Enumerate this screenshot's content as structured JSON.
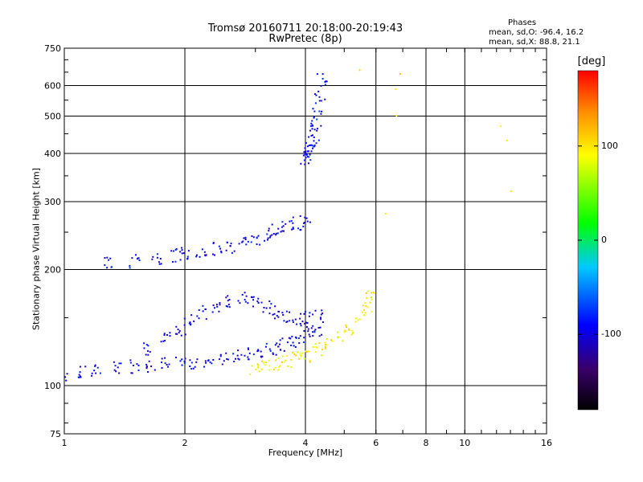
{
  "header": {
    "title_line1": "Tromsø 20160711 20:18:00-20:19:43",
    "title_line2": "RwPretec (8p)"
  },
  "phases_box": {
    "heading": "Phases",
    "line_O": "mean, sd,O: -96.4, 16.2",
    "line_X": "mean, sd,X: 88.8, 21.1"
  },
  "colorbar": {
    "title": "[deg]",
    "range": [
      -180,
      180
    ],
    "tick_labels": [
      "100",
      "0",
      "-100"
    ],
    "tick_values": [
      100,
      0,
      -100
    ],
    "colors": [
      "#000000",
      "#3a006a",
      "#0000ff",
      "#00c8ff",
      "#00ff00",
      "#ffff00",
      "#ff8c00",
      "#ff0000"
    ]
  },
  "chart_data": {
    "type": "scatter",
    "title": "Tromsø 20160711 20:18:00-20:19:43",
    "subtitle": "RwPretec (8p)",
    "xlabel": "Frequency [MHz]",
    "ylabel": "Stationary phase Virtual Height [km]",
    "x_scale": "log",
    "y_scale": "log",
    "xlim": [
      1,
      16
    ],
    "ylim": [
      75,
      750
    ],
    "x_ticks": [
      1,
      2,
      4,
      6,
      8,
      10,
      16
    ],
    "x_tick_labels": [
      "1",
      "2",
      "4",
      "6",
      "8",
      "10",
      "16"
    ],
    "y_ticks": [
      75,
      100,
      200,
      300,
      400,
      500,
      600,
      750
    ],
    "y_tick_labels": [
      "75",
      "100",
      "200",
      "300",
      "400",
      "500",
      "600",
      "750"
    ],
    "grid": true,
    "color_by": "phase [deg]",
    "point_groups": [
      {
        "description": "O-mode F1/E trace low",
        "x": [
          1.0,
          1.1,
          1.2,
          1.35,
          1.5,
          1.65,
          1.8,
          1.95,
          2.1,
          2.3,
          2.5,
          2.7,
          2.9,
          3.1,
          3.3,
          3.5,
          3.7,
          3.9,
          4.1,
          4.3
        ],
        "y": [
          106,
          108,
          110,
          111,
          112,
          113,
          114,
          114,
          115,
          116,
          118,
          119,
          121,
          123,
          125,
          128,
          130,
          134,
          137,
          140
        ],
        "phase": -95
      },
      {
        "description": "O-mode spread upper",
        "x": [
          1.6,
          1.8,
          1.95,
          2.05,
          2.2,
          2.4,
          2.6,
          2.8,
          3.0,
          3.2,
          3.4,
          3.6,
          3.8,
          4.0,
          4.3
        ],
        "y": [
          125,
          132,
          140,
          148,
          155,
          160,
          165,
          168,
          165,
          160,
          155,
          150,
          148,
          150,
          152
        ],
        "phase": -100
      },
      {
        "description": "O-mode F2 trace",
        "x": [
          1.3,
          1.5,
          1.7,
          1.9,
          2.0,
          2.2,
          2.4,
          2.6,
          2.8,
          3.0,
          3.2,
          3.4,
          3.6,
          3.8,
          4.0
        ],
        "y": [
          208,
          210,
          214,
          218,
          220,
          222,
          226,
          230,
          234,
          240,
          246,
          252,
          258,
          264,
          268
        ],
        "phase": -95
      },
      {
        "description": "O-mode F2 cusp",
        "x": [
          4.0,
          4.05,
          4.1,
          4.15,
          4.2,
          4.25,
          4.3,
          4.35,
          4.4
        ],
        "y": [
          390,
          400,
          410,
          425,
          445,
          470,
          510,
          560,
          620
        ],
        "phase": -90
      },
      {
        "description": "X-mode trace",
        "x": [
          3.0,
          3.2,
          3.4,
          3.6,
          3.8,
          4.0,
          4.3,
          4.6,
          4.9,
          5.2,
          5.5,
          5.7,
          5.85
        ],
        "y": [
          110,
          112,
          114,
          116,
          118,
          120,
          124,
          128,
          134,
          140,
          150,
          160,
          170
        ],
        "phase": 95
      },
      {
        "description": "X-mode cusp / sporadic",
        "x": [
          5.5,
          6.5,
          6.9,
          6.9,
          6.9,
          12.5,
          12.6,
          12.7
        ],
        "y": [
          660,
          280,
          640,
          590,
          500,
          470,
          430,
          320
        ],
        "phase": 110
      }
    ]
  }
}
